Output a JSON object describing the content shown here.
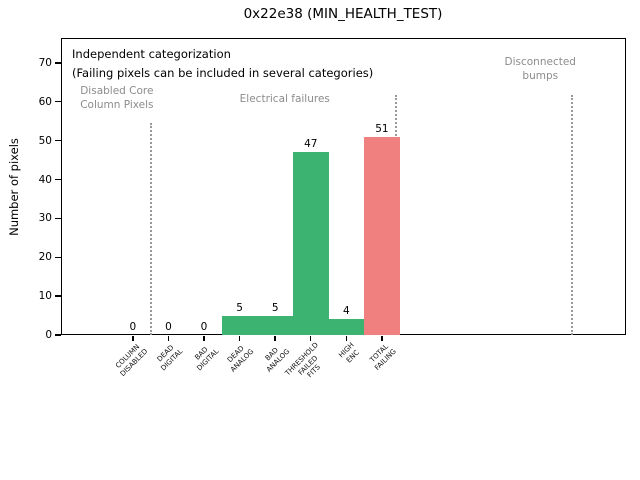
{
  "window": {
    "background": "#ffffff"
  },
  "chart_data": {
    "type": "bar",
    "title": "0x22e38 (MIN_HEALTH_TEST)",
    "ylabel": "Number of pixels",
    "xlabel": "",
    "ylim": [
      0,
      76.4
    ],
    "yticks": [
      0,
      10,
      20,
      30,
      40,
      50,
      60,
      70
    ],
    "grid": false,
    "legend": "none",
    "categories": [
      "COLUMN\nDISABLED",
      "DEAD\nDIGITAL",
      "BAD\nDIGITAL",
      "DEAD\nANALOG",
      "BAD\nANALOG",
      "THRESHOLD\nFAILED\nFITS",
      "HIGH\nENC",
      "TOTAL\nFAILING"
    ],
    "values": [
      0,
      0,
      0,
      5,
      5,
      47,
      4,
      51
    ],
    "bar_colors": [
      "#3cb371",
      "#3cb371",
      "#3cb371",
      "#3cb371",
      "#3cb371",
      "#3cb371",
      "#3cb371",
      "#f08080"
    ],
    "bar_value_labels": [
      "0",
      "0",
      "0",
      "5",
      "5",
      "47",
      "4",
      "51"
    ],
    "annotations": [
      {
        "id": "independent-categorization",
        "text": "Independent categorization",
        "x": -1.71,
        "y": 74.2,
        "align": "left",
        "color": "#000000",
        "size": 11.5,
        "line_height": 14
      },
      {
        "id": "categorization-note",
        "text": "(Failing pixels can be included in several categories)",
        "x": -1.71,
        "y": 69.2,
        "align": "left",
        "color": "#000000",
        "size": 11.5,
        "line_height": 14
      },
      {
        "id": "disabled-core-column-pixels",
        "text": "Disabled Core\nColumn Pixels",
        "x": -0.45,
        "y": 64.2,
        "align": "center",
        "color": "#8c8c8c",
        "size": 10.5,
        "line_height": 13.5
      },
      {
        "id": "electrical-failures",
        "text": "Electrical failures",
        "x": 4.27,
        "y": 62.2,
        "align": "center",
        "color": "#8c8c8c",
        "size": 10.5,
        "line_height": 13.5
      },
      {
        "id": "disconnected-bumps",
        "text": "Disconnected\nbumps",
        "x": 11.45,
        "y": 72.0,
        "align": "center",
        "color": "#8c8c8c",
        "size": 10.5,
        "line_height": 14
      }
    ],
    "separators": [
      {
        "x": 0.5,
        "y_top": 54.5
      },
      {
        "x": 7.4,
        "y_top": 61.8
      },
      {
        "x": 12.35,
        "y_top": 61.8
      }
    ],
    "xlim": [
      -2.02,
      13.86
    ],
    "colors": {
      "green_bar": "#3cb371",
      "red_bar": "#f08080",
      "annotation_gray": "#8c8c8c",
      "separator_gray": "#999999",
      "axis_black": "#000000"
    }
  }
}
